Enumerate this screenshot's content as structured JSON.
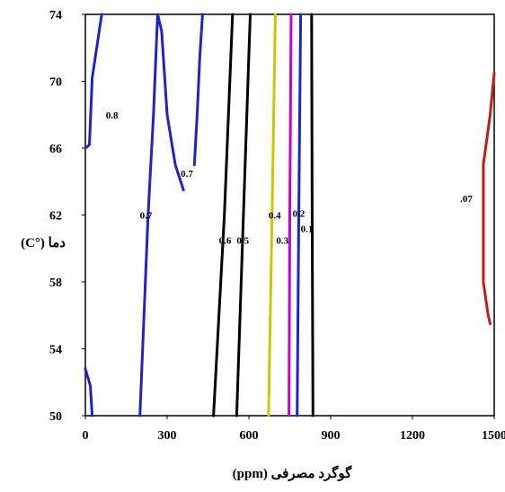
{
  "chart_data": {
    "type": "contour",
    "xlabel": "گوگرد مصرفی (ppm)",
    "ylabel": "دما (°C)",
    "xlim": [
      0,
      1500
    ],
    "ylim": [
      50,
      74
    ],
    "x_ticks": [
      "0",
      "300",
      "600",
      "900",
      "1200",
      "1500"
    ],
    "x_tick_values": [
      0,
      300,
      600,
      900,
      1200,
      1500
    ],
    "y_ticks": [
      "50",
      "54",
      "58",
      "62",
      "66",
      "70",
      "74"
    ],
    "y_tick_values": [
      50,
      54,
      58,
      62,
      66,
      70,
      74
    ],
    "grid": false,
    "contours": [
      {
        "level": "0.8",
        "color": "#1f24c8",
        "points": [
          [
            0,
            66
          ],
          [
            15,
            66.2
          ],
          [
            25,
            70.2
          ],
          [
            60,
            74
          ]
        ],
        "label_at": [
          75,
          68
        ]
      },
      {
        "level": "",
        "color": "#1f24c8",
        "points": [
          [
            0,
            52.8
          ],
          [
            18,
            51.8
          ],
          [
            25,
            50
          ]
        ]
      },
      {
        "level": "0.7",
        "color": "#1f24c8",
        "points": [
          [
            200,
            50
          ],
          [
            230,
            62
          ],
          [
            250,
            68
          ],
          [
            265,
            74
          ],
          [
            280,
            73
          ],
          [
            300,
            68
          ],
          [
            330,
            65
          ],
          [
            360,
            63.5
          ]
        ],
        "label_at": [
          200,
          62
        ]
      },
      {
        "level": "0.7",
        "color": "#1f24c8",
        "points": [
          [
            400,
            65
          ],
          [
            410,
            68
          ],
          [
            420,
            71.5
          ],
          [
            430,
            74
          ]
        ],
        "label_at": [
          350,
          64.5
        ]
      },
      {
        "level": "0.6",
        "color": "#000000",
        "points": [
          [
            470,
            50
          ],
          [
            510,
            62
          ],
          [
            540,
            74
          ]
        ],
        "label_at": [
          490,
          60.5
        ]
      },
      {
        "level": "0.5",
        "color": "#000000",
        "points": [
          [
            555,
            50
          ],
          [
            580,
            62
          ],
          [
            605,
            74
          ]
        ],
        "label_at": [
          555,
          60.5
        ]
      },
      {
        "level": "0.4",
        "color": "#c8c800",
        "points": [
          [
            672,
            50
          ],
          [
            685,
            62
          ],
          [
            697,
            74
          ]
        ],
        "label_at": [
          672,
          62
        ]
      },
      {
        "level": "0.3",
        "color": "#c800c8",
        "points": [
          [
            747,
            50
          ],
          [
            750,
            62
          ],
          [
            755,
            74
          ]
        ],
        "label_at": [
          700,
          60.5
        ]
      },
      {
        "level": "0.2",
        "color": "#1f24c8",
        "points": [
          [
            777,
            50
          ],
          [
            783,
            62
          ],
          [
            790,
            74
          ]
        ],
        "label_at": [
          760,
          62.1
        ]
      },
      {
        "level": "0.1",
        "color": "#000000",
        "points": [
          [
            835,
            50
          ],
          [
            832,
            62
          ],
          [
            830,
            74
          ]
        ],
        "label_at": [
          790,
          61.2
        ]
      },
      {
        "level": ".07",
        "color": "#c81818",
        "points": [
          [
            1500,
            70.5
          ],
          [
            1485,
            68
          ],
          [
            1460,
            65
          ],
          [
            1460,
            58
          ],
          [
            1478,
            56
          ],
          [
            1485,
            55.5
          ]
        ],
        "label_at": [
          1375,
          63
        ]
      }
    ]
  }
}
